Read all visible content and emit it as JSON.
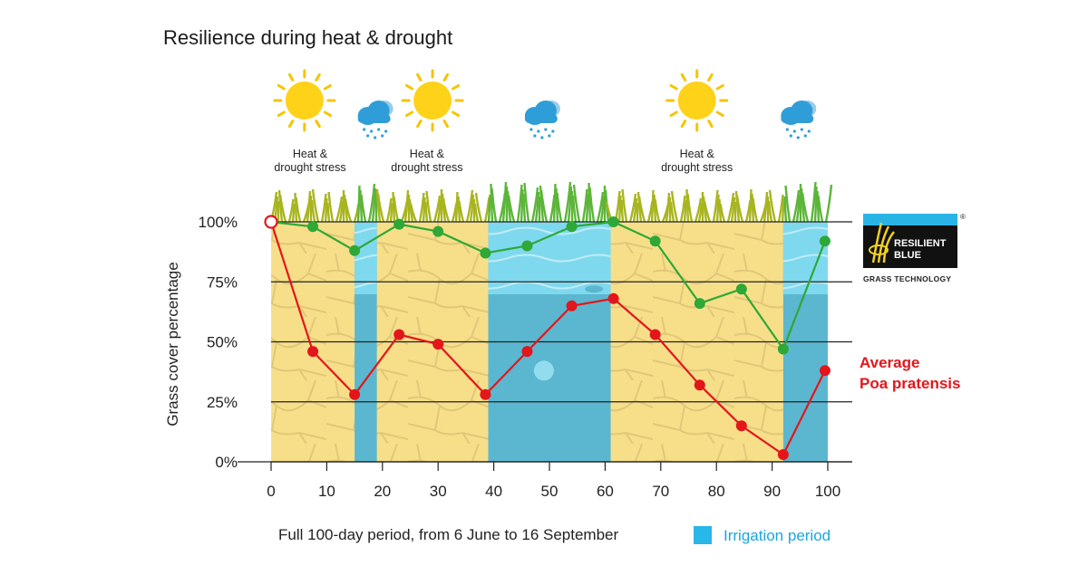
{
  "chart_data": {
    "type": "line",
    "title": "Resilience during heat & drought",
    "xlabel": "Full 100-day period, from 6 June to 16 September",
    "ylabel": "Grass cover percentage",
    "xlim": [
      0,
      100
    ],
    "ylim": [
      0,
      100
    ],
    "x_ticks": [
      0,
      10,
      20,
      30,
      40,
      50,
      60,
      70,
      80,
      90,
      100
    ],
    "y_ticks": [
      {
        "value": 0,
        "label": "0%"
      },
      {
        "value": 25,
        "label": "25%"
      },
      {
        "value": 50,
        "label": "50%"
      },
      {
        "value": 75,
        "label": "75%"
      },
      {
        "value": 100,
        "label": "100%"
      }
    ],
    "grid": "horizontal",
    "series": [
      {
        "name": "",
        "color": "#2ea836",
        "points": [
          {
            "x": 0,
            "y": 100
          },
          {
            "x": 7.5,
            "y": 98
          },
          {
            "x": 15,
            "y": 88
          },
          {
            "x": 23,
            "y": 99
          },
          {
            "x": 30,
            "y": 96
          },
          {
            "x": 38.5,
            "y": 87
          },
          {
            "x": 46,
            "y": 90
          },
          {
            "x": 54,
            "y": 98
          },
          {
            "x": 61.5,
            "y": 100
          },
          {
            "x": 69,
            "y": 92
          },
          {
            "x": 77,
            "y": 66
          },
          {
            "x": 84.5,
            "y": 72
          },
          {
            "x": 92,
            "y": 47
          },
          {
            "x": 99.5,
            "y": 92
          }
        ]
      },
      {
        "name": "Average Poa pratensis",
        "name_lines": [
          "Average",
          "Poa pratensis"
        ],
        "color": "#e3161b",
        "points": [
          {
            "x": 0,
            "y": 100
          },
          {
            "x": 7.5,
            "y": 46
          },
          {
            "x": 15,
            "y": 28
          },
          {
            "x": 23,
            "y": 53
          },
          {
            "x": 30,
            "y": 49
          },
          {
            "x": 38.5,
            "y": 28
          },
          {
            "x": 46,
            "y": 46
          },
          {
            "x": 54,
            "y": 65
          },
          {
            "x": 61.5,
            "y": 68
          },
          {
            "x": 69,
            "y": 53
          },
          {
            "x": 77,
            "y": 32
          },
          {
            "x": 84.5,
            "y": 15
          },
          {
            "x": 92,
            "y": 3
          },
          {
            "x": 99.5,
            "y": 38
          }
        ]
      }
    ],
    "irrigation_periods": [
      [
        15,
        19
      ],
      [
        39,
        61
      ],
      [
        92,
        100
      ]
    ],
    "irrigation_label": "Irrigation period",
    "irrigation_color": "#29b6e8",
    "stress_labels": [
      {
        "x": 7,
        "lines": [
          "Heat &",
          "drought stress"
        ]
      },
      {
        "x": 28,
        "lines": [
          "Heat &",
          "drought stress"
        ]
      },
      {
        "x": 76.5,
        "lines": [
          "Heat &",
          "drought stress"
        ]
      }
    ],
    "weather_icons": [
      {
        "x": 6,
        "kind": "sun-icon"
      },
      {
        "x": 19,
        "kind": "rain-cloud-icon"
      },
      {
        "x": 29,
        "kind": "sun-icon"
      },
      {
        "x": 49,
        "kind": "rain-cloud-icon"
      },
      {
        "x": 76.5,
        "kind": "sun-icon"
      },
      {
        "x": 95,
        "kind": "rain-cloud-icon"
      }
    ]
  },
  "logo": {
    "line1": "RESILIENT",
    "line2": "BLUE",
    "subtitle": "GRASS TECHNOLOGY",
    "mark": "®"
  }
}
